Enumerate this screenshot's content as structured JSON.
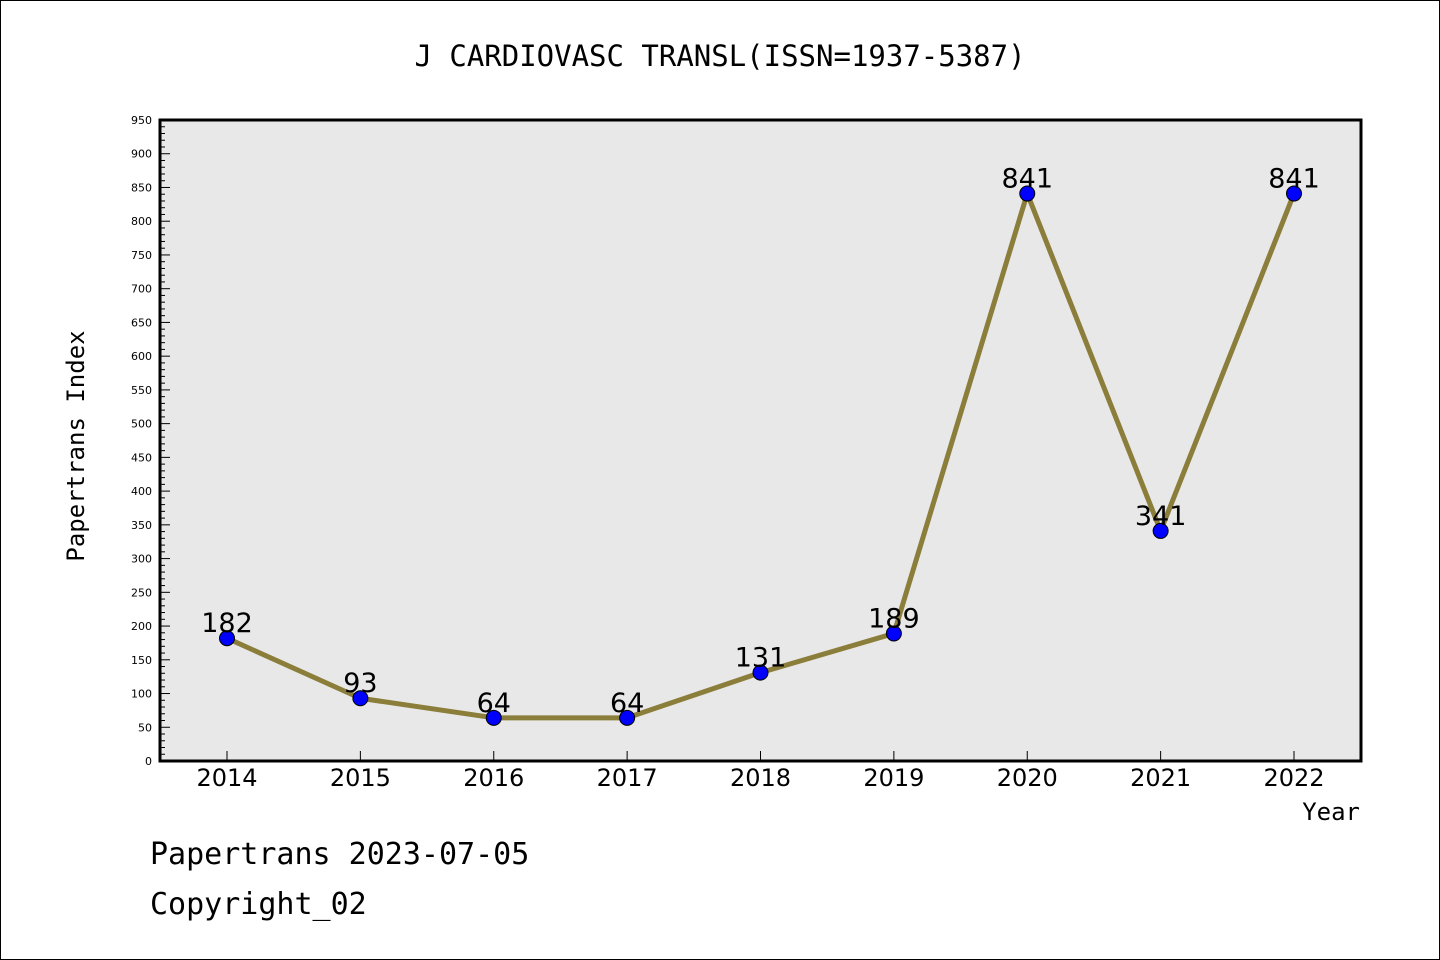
{
  "chart_data": {
    "type": "line",
    "title": "J CARDIOVASC TRANSL(ISSN=1937-5387)",
    "xlabel": "Year",
    "ylabel": "Papertrans Index",
    "categories": [
      "2014",
      "2015",
      "2016",
      "2017",
      "2018",
      "2019",
      "2020",
      "2021",
      "2022"
    ],
    "values": [
      182,
      93,
      64,
      64,
      131,
      189,
      841,
      341,
      841
    ],
    "data_labels": [
      "182",
      "93",
      "64",
      "64",
      "131",
      "189",
      "841",
      "341",
      "841"
    ],
    "ylim": [
      0,
      950
    ],
    "yticks": [
      0,
      50,
      100,
      150,
      200,
      250,
      300,
      350,
      400,
      450,
      500,
      550,
      600,
      650,
      700,
      750,
      800,
      850,
      900,
      950
    ],
    "ytick_labels": [
      "0",
      "50",
      "100",
      "150",
      "200",
      "250",
      "300",
      "350",
      "400",
      "450",
      "500",
      "550",
      "600",
      "650",
      "700",
      "750",
      "800",
      "850",
      "900",
      "950"
    ],
    "grid": false,
    "line_color": "#8B7D3A",
    "marker_color": "#0000FF",
    "plot_background": "#E8E8E8"
  },
  "footer": {
    "line1": "Papertrans 2023-07-05",
    "line2": "Copyright_02"
  }
}
